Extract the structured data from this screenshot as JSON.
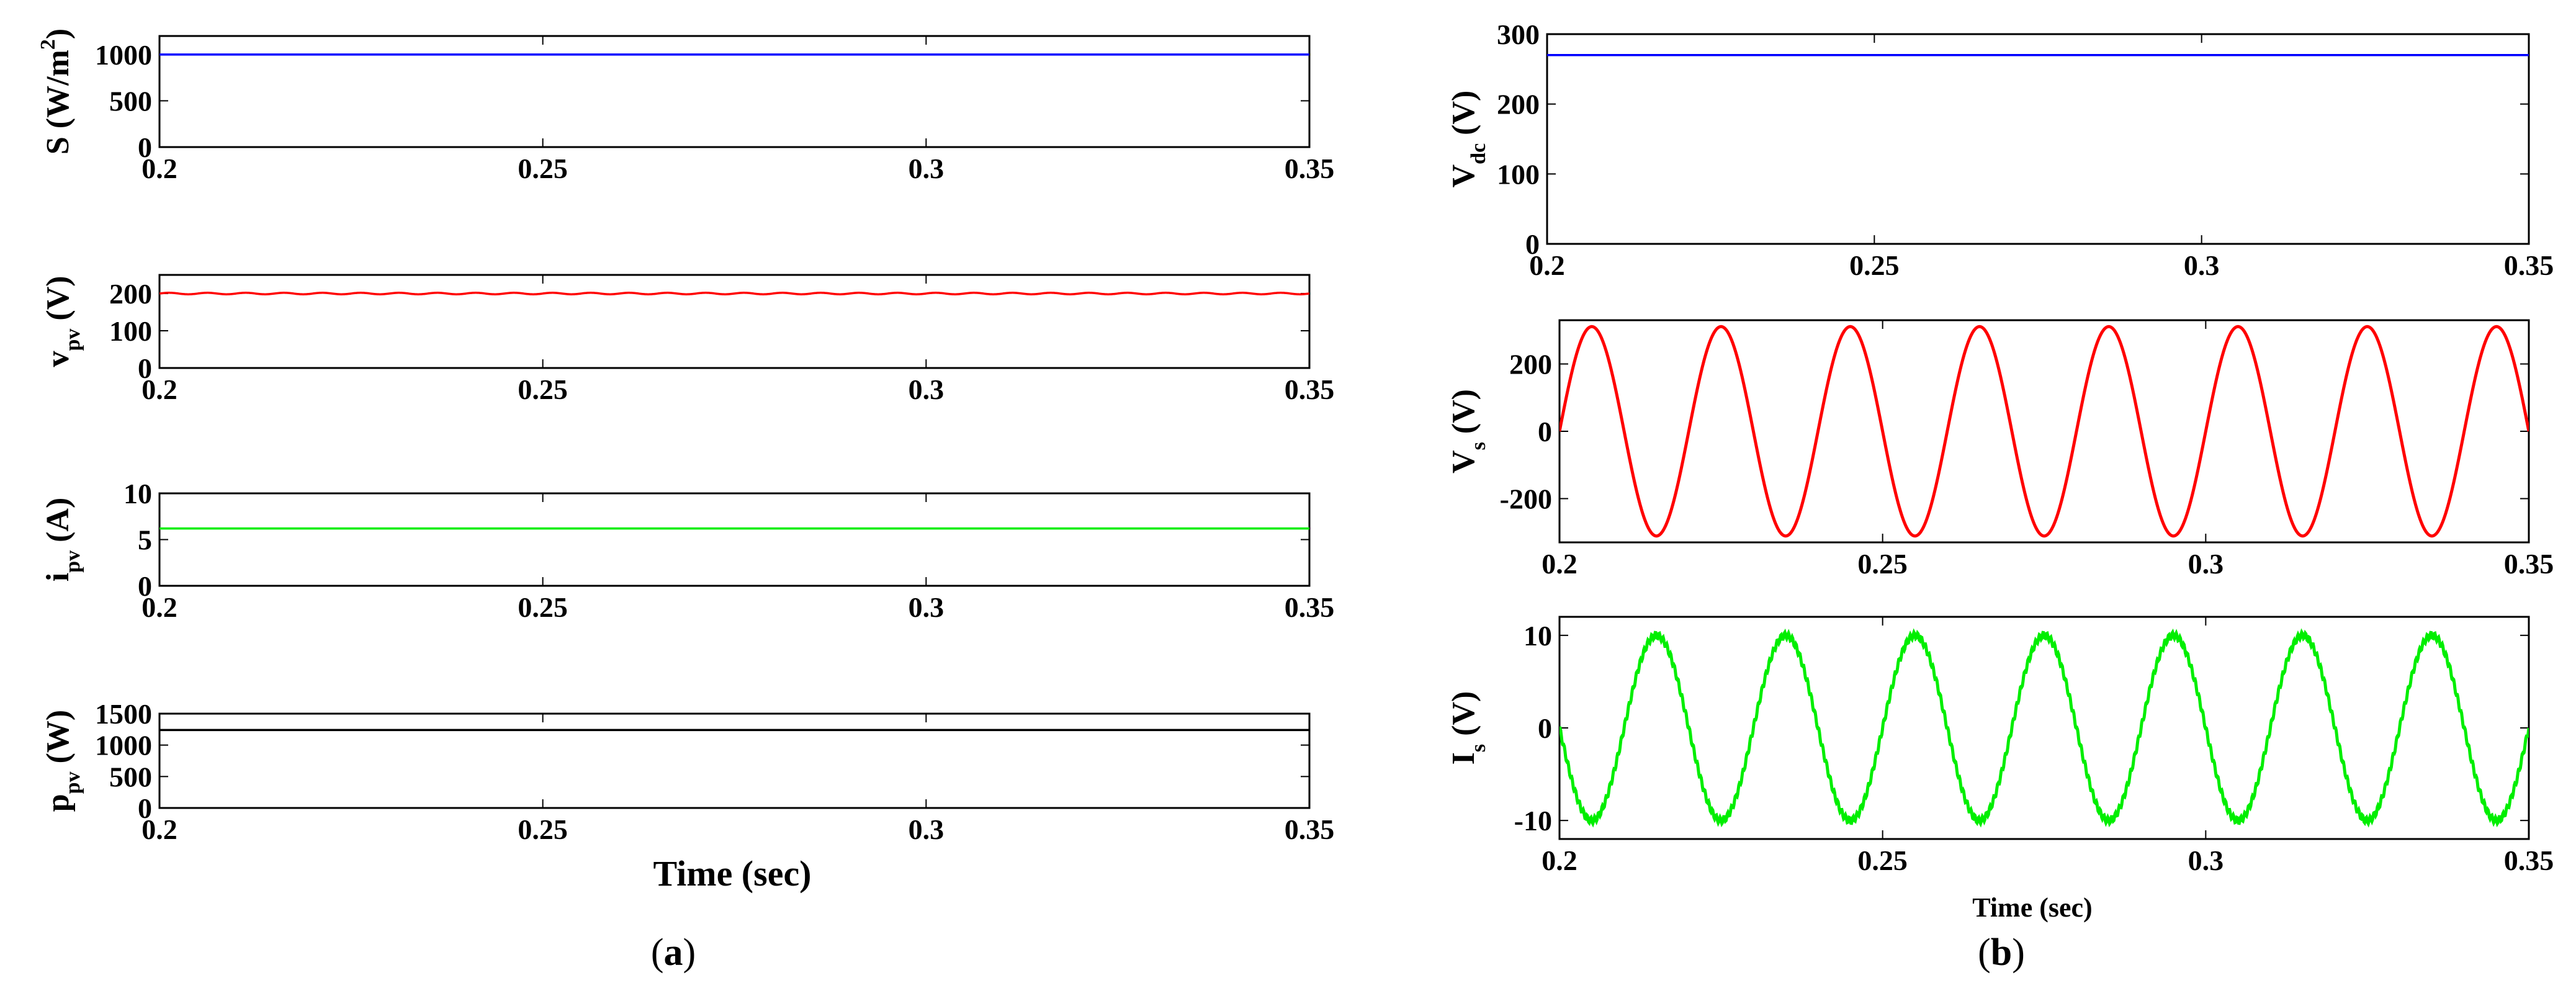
{
  "panels": [
    {
      "label": "a"
    },
    {
      "label": "b"
    }
  ],
  "chart_data": [
    {
      "type": "line",
      "panel": "a",
      "ylabel": {
        "main": "S (W/m",
        "sup": "2",
        "after": ")"
      },
      "xlabel": "",
      "xlim": [
        0.2,
        0.35
      ],
      "ylim": [
        0,
        1200
      ],
      "xticks": [
        "0.2",
        "0.25",
        "0.3",
        "0.35"
      ],
      "yticks": [
        0,
        500,
        1000
      ],
      "series": [
        {
          "x": [
            0.2,
            0.35
          ],
          "y": [
            1000,
            1000
          ],
          "color": "#0000ff"
        }
      ]
    },
    {
      "type": "line",
      "panel": "a",
      "ylabel": {
        "main": "v",
        "sub": "pv",
        "after": " (V)"
      },
      "xlabel": "",
      "xlim": [
        0.2,
        0.35
      ],
      "ylim": [
        0,
        250
      ],
      "xticks": [
        "0.2",
        "0.25",
        "0.3",
        "0.35"
      ],
      "yticks": [
        0,
        100,
        200
      ],
      "series": [
        {
          "x": [
            0.2,
            0.35
          ],
          "y": [
            200,
            200
          ],
          "color": "#ff0000",
          "ripple": 2,
          "periods": 30
        }
      ]
    },
    {
      "type": "line",
      "panel": "a",
      "ylabel": {
        "main": "i",
        "sub": "pv",
        "after": " (A)"
      },
      "xlabel": "",
      "xlim": [
        0.2,
        0.35
      ],
      "ylim": [
        0,
        10
      ],
      "xticks": [
        "0.2",
        "0.25",
        "0.3",
        "0.35"
      ],
      "yticks": [
        0,
        5,
        10
      ],
      "series": [
        {
          "x": [
            0.2,
            0.35
          ],
          "y": [
            6.2,
            6.2
          ],
          "color": "#00ee00"
        }
      ]
    },
    {
      "type": "line",
      "panel": "a",
      "ylabel": {
        "main": "p",
        "sub": "pv",
        "after": " (W)"
      },
      "xlabel": "Time (sec)",
      "xlim": [
        0.2,
        0.35
      ],
      "ylim": [
        0,
        1500
      ],
      "xticks": [
        "0.2",
        "0.25",
        "0.3",
        "0.35"
      ],
      "yticks": [
        0,
        500,
        1000,
        1500
      ],
      "series": [
        {
          "x": [
            0.2,
            0.35
          ],
          "y": [
            1240,
            1240
          ],
          "color": "#000000"
        }
      ]
    },
    {
      "type": "line",
      "panel": "b",
      "ylabel": {
        "main": "V",
        "sub": "dc",
        "after": " (V)"
      },
      "xlabel": "",
      "xlim": [
        0.2,
        0.35
      ],
      "ylim": [
        0,
        300
      ],
      "xticks": [
        "0.2",
        "0.25",
        "0.3",
        "0.35"
      ],
      "yticks": [
        0,
        100,
        200,
        300
      ],
      "series": [
        {
          "x": [
            0.2,
            0.35
          ],
          "y": [
            270,
            270
          ],
          "color": "#0000ff"
        }
      ]
    },
    {
      "type": "line",
      "panel": "b",
      "ylabel": {
        "main": "V",
        "sub": "s",
        "after": " (V)"
      },
      "xlabel": "",
      "xlim": [
        0.2,
        0.35
      ],
      "ylim": [
        -330,
        330
      ],
      "xticks": [
        "0.2",
        "0.25",
        "0.3",
        "0.35"
      ],
      "yticks": [
        -200,
        0,
        200
      ],
      "series": [
        {
          "function": "sine",
          "amplitude": 311,
          "frequency_hz": 50,
          "phase": 0,
          "color": "#ff0000"
        }
      ]
    },
    {
      "type": "line",
      "panel": "b",
      "ylabel": {
        "main": "I",
        "sub": "s",
        "after": " (V)"
      },
      "xlabel": "Time (sec)",
      "xlim": [
        0.2,
        0.35
      ],
      "ylim": [
        -12,
        12
      ],
      "xticks": [
        "0.2",
        "0.25",
        "0.3",
        "0.35"
      ],
      "yticks": [
        -10,
        0,
        10
      ],
      "series": [
        {
          "function": "sine",
          "amplitude": 10,
          "frequency_hz": 50,
          "phase": 3.14159,
          "color": "#00ee00",
          "ripple": 0.35
        }
      ]
    }
  ]
}
